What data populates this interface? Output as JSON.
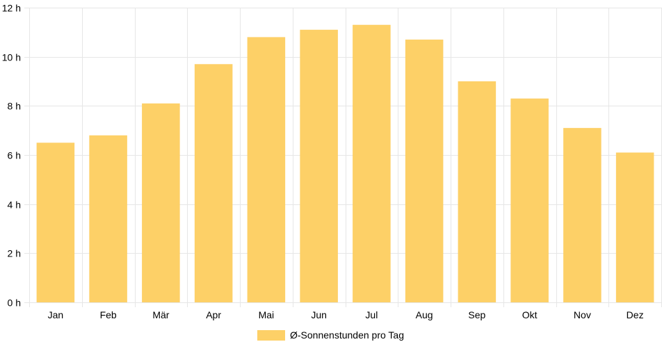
{
  "chart_data": {
    "type": "bar",
    "title": "",
    "xlabel": "",
    "ylabel": "",
    "categories": [
      "Jan",
      "Feb",
      "Mär",
      "Apr",
      "Mai",
      "Jun",
      "Jul",
      "Aug",
      "Sep",
      "Okt",
      "Nov",
      "Dez"
    ],
    "series": [
      {
        "name": "Ø-Sonnenstunden pro Tag",
        "color": "#fdd067",
        "values": [
          6.5,
          6.8,
          8.1,
          9.7,
          10.8,
          11.1,
          11.3,
          10.7,
          9.0,
          8.3,
          7.1,
          6.1
        ]
      }
    ],
    "ylim": [
      0,
      12
    ],
    "y_ticks": [
      {
        "value": 0,
        "label": "0 h"
      },
      {
        "value": 2,
        "label": "2 h"
      },
      {
        "value": 4,
        "label": "4 h"
      },
      {
        "value": 6,
        "label": "6 h"
      },
      {
        "value": 8,
        "label": "8 h"
      },
      {
        "value": 10,
        "label": "10 h"
      },
      {
        "value": 12,
        "label": "12 h"
      }
    ],
    "grid": true,
    "grid_color": "#e6e6e6",
    "legend_position": "bottom"
  }
}
